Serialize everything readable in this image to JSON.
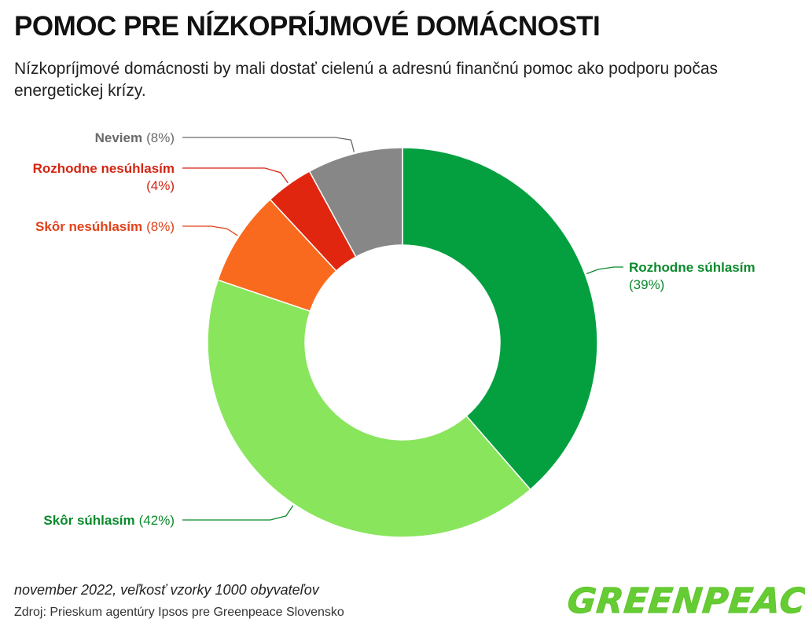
{
  "title": "POMOC PRE NÍZKOPRÍJMOVÉ DOMÁCNOSTI",
  "subtitle": "Nízkopríjmové domácnosti by mali dostať cielenú a adresnú finančnú pomoc ako podporu počas energetickej krízy.",
  "footer": {
    "date_note": "november 2022, veľkosť vzorky 1000 obyvateľov",
    "source": "Zdroj: Prieskum agentúry Ipsos pre Greenpeace Slovensko"
  },
  "logo": {
    "text": "GREENPEACE",
    "color": "#66cc33"
  },
  "chart_data": {
    "type": "pie",
    "style": "donut",
    "slices": [
      {
        "label": "Rozhodne súhlasím",
        "pct_text": "(39%)",
        "value": 39,
        "color": "#04a040",
        "label_color": "#0a8a2c"
      },
      {
        "label": "Skôr súhlasím",
        "pct_text": "(42%)",
        "value": 42,
        "color": "#88e55c",
        "label_color": "#0a8a2c"
      },
      {
        "label": "Skôr nesúhlasím",
        "pct_text": "(8%)",
        "value": 8,
        "color": "#fa6a1e",
        "label_color": "#e0421a"
      },
      {
        "label": "Rozhodne nesúhlasím",
        "pct_text": "(4%)",
        "value": 4,
        "color": "#e0260f",
        "label_color": "#d42512"
      },
      {
        "label": "Neviem",
        "pct_text": "(8%)",
        "value": 8,
        "color": "#878787",
        "label_color": "#6a6a6a"
      }
    ]
  }
}
